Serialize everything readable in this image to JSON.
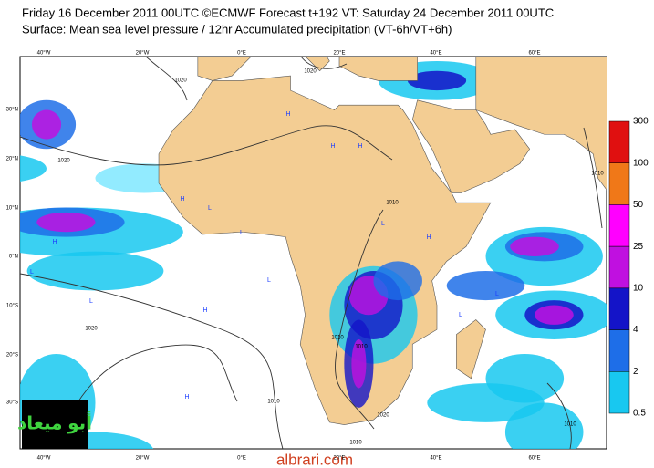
{
  "header": {
    "line1": "Friday 16 December 2011 00UTC ©ECMWF Forecast t+192 VT: Saturday 24 December 2011 00UTC",
    "line2": "Surface: Mean sea level pressure / 12hr Accumulated precipitation (VT-6h/VT+6h)"
  },
  "map": {
    "lon_labels": [
      "40°W",
      "20°W",
      "0°E",
      "20°E",
      "40°E",
      "60°E"
    ],
    "lat_labels": [
      "30°N",
      "20°N",
      "10°N",
      "0°N",
      "10°S",
      "20°S",
      "30°S"
    ],
    "contour_labels": [
      "1020",
      "1020",
      "1020",
      "1010",
      "1010",
      "1010",
      "1010",
      "1020",
      "1010",
      "1010",
      "1010",
      "1020"
    ],
    "centers": [
      "H",
      "H",
      "H",
      "L",
      "L",
      "H",
      "L",
      "H",
      "L",
      "L",
      "H",
      "H",
      "L",
      "L",
      "H",
      "L"
    ]
  },
  "colorbar": {
    "levels": [
      300,
      100,
      50,
      25,
      10,
      4,
      2,
      0.5
    ],
    "colors": [
      "#e01010",
      "#f07818",
      "#f0f",
      "#c010e0",
      "#1414c8",
      "#1e6ee8",
      "#18c8f0"
    ]
  },
  "logo": "أبو ميعاد",
  "watermark": "albrari.com"
}
